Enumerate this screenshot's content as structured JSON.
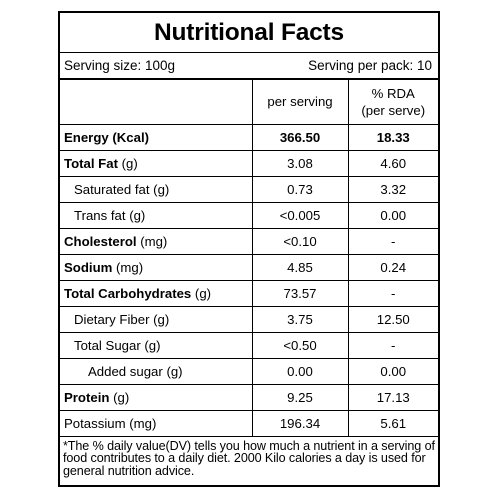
{
  "title": "Nutritional Facts",
  "serving": {
    "size": "Serving size: 100g",
    "per_pack": "Serving per pack: 10"
  },
  "header": {
    "col2": "per serving",
    "col3_line1": "% RDA",
    "col3_line2": "(per serve)"
  },
  "rows": [
    {
      "bold": "Energy (Kcal)",
      "rest": "",
      "per_serving": "366.50",
      "rda": "18.33"
    },
    {
      "bold": "Total Fat",
      "rest": " (g)",
      "per_serving": "3.08",
      "rda": "4.60"
    },
    {
      "bold": "",
      "rest": "Saturated fat (g)",
      "per_serving": "0.73",
      "rda": "3.32"
    },
    {
      "bold": "",
      "rest": "Trans fat (g)",
      "per_serving": "<0.005",
      "rda": "0.00"
    },
    {
      "bold": "Cholesterol",
      "rest": " (mg)",
      "per_serving": "<0.10",
      "rda": "-"
    },
    {
      "bold": "Sodium",
      "rest": " (mg)",
      "per_serving": "4.85",
      "rda": "0.24"
    },
    {
      "bold": "Total Carbohydrates",
      "rest": " (g)",
      "per_serving": "73.57",
      "rda": "-"
    },
    {
      "bold": "",
      "rest": "Dietary Fiber (g)",
      "per_serving": "3.75",
      "rda": "12.50"
    },
    {
      "bold": "",
      "rest": "Total Sugar (g)",
      "per_serving": "<0.50",
      "rda": "-"
    },
    {
      "bold": "",
      "rest": "Added sugar (g)",
      "per_serving": "0.00",
      "rda": "0.00"
    },
    {
      "bold": "Protein",
      "rest": " (g)",
      "per_serving": "9.25",
      "rda": "17.13"
    },
    {
      "bold": "",
      "rest": "Potassium (mg)",
      "per_serving": "196.34",
      "rda": "5.61"
    }
  ],
  "footnote": "*The % daily value(DV) tells you how much a nutrient in a serving of food contributes to a daily diet. 2000 Kilo calories a day is used for general nutrition advice."
}
